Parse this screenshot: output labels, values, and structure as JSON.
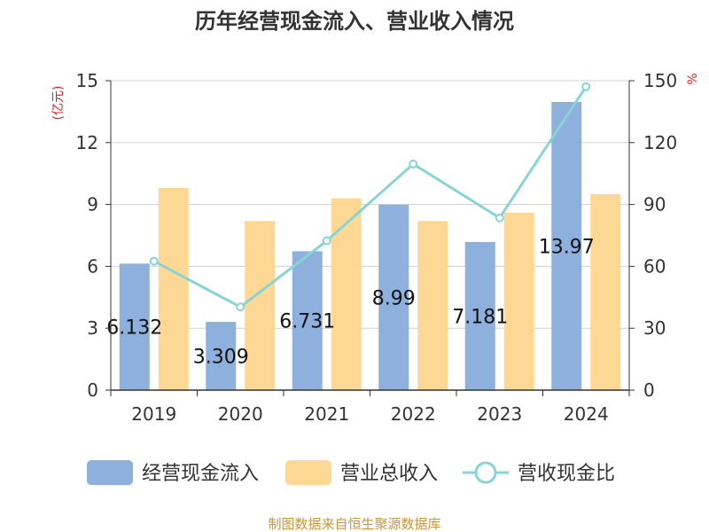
{
  "chart_data": {
    "type": "bar",
    "title": "历年经营现金流入、营业收入情况",
    "categories": [
      "2019",
      "2020",
      "2021",
      "2022",
      "2023",
      "2024"
    ],
    "y_left": {
      "unit": "(亿元)",
      "range": [
        0,
        15
      ],
      "ticks": [
        "0",
        "3",
        "6",
        "9",
        "12",
        "15"
      ]
    },
    "y_right": {
      "unit": "%",
      "range": [
        0,
        150
      ],
      "ticks": [
        "0",
        "30",
        "60",
        "90",
        "120",
        "150"
      ]
    },
    "series": [
      {
        "name": "经营现金流入",
        "kind": "bar",
        "axis": "left",
        "color": "#8eb0dc",
        "values": [
          6.132,
          3.309,
          6.731,
          8.99,
          7.181,
          13.97
        ],
        "labels": [
          "6.132",
          "3.309",
          "6.731",
          "8.99",
          "7.181",
          "13.97"
        ]
      },
      {
        "name": "营业总收入",
        "kind": "bar",
        "axis": "left",
        "color": "#fdd895",
        "values": [
          9.8,
          8.2,
          9.3,
          8.2,
          8.6,
          9.5
        ]
      },
      {
        "name": "营收现金比",
        "kind": "line",
        "axis": "right",
        "color": "#88d4d4",
        "values": [
          62.5,
          40.3,
          72.4,
          109.6,
          83.5,
          147.1
        ]
      }
    ],
    "grid": true,
    "legend_position": "bottom"
  },
  "source_text": "制图数据来自恒生聚源数据库"
}
